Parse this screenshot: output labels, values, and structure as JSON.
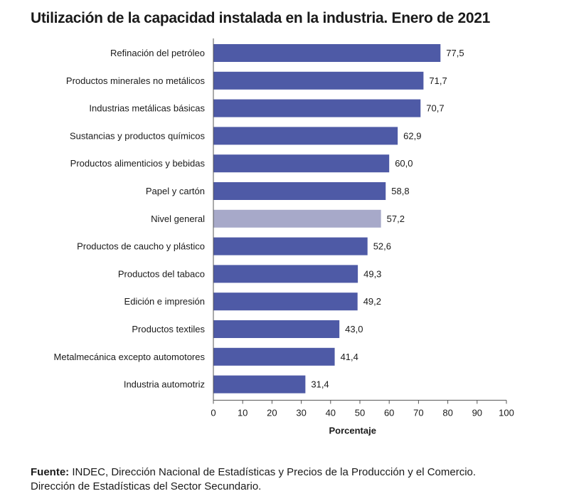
{
  "title": "Utilización de la capacidad instalada en la industria. Enero de 2021",
  "chart_data": {
    "type": "bar",
    "orientation": "horizontal",
    "title": "Utilización de la capacidad instalada en la industria. Enero de 2021",
    "xlabel": "Porcentaje",
    "ylabel": "",
    "xlim": [
      0,
      100
    ],
    "ticks": [
      0,
      10,
      20,
      30,
      40,
      50,
      60,
      70,
      80,
      90,
      100
    ],
    "categories": [
      "Refinación del petróleo",
      "Productos minerales no metálicos",
      "Industrias metálicas básicas",
      "Sustancias y productos químicos",
      "Productos alimenticios y bebidas",
      "Papel y cartón",
      "Nivel general",
      "Productos de caucho y plástico",
      "Productos del tabaco",
      "Edición e impresión",
      "Productos textiles",
      "Metalmecánica excepto automotores",
      "Industria automotriz"
    ],
    "values": [
      77.5,
      71.7,
      70.7,
      62.9,
      60.0,
      58.8,
      57.2,
      52.6,
      49.3,
      49.2,
      43.0,
      41.4,
      31.4
    ],
    "value_labels": [
      "77,5",
      "71,7",
      "70,7",
      "62,9",
      "60,0",
      "58,8",
      "57,2",
      "52,6",
      "49,3",
      "49,2",
      "43,0",
      "41,4",
      "31,4"
    ],
    "highlight_category": "Nivel general",
    "colors": {
      "bar": "#4e5aa6",
      "highlight": "#a7a9c9",
      "axis": "#555555"
    }
  },
  "footer": {
    "label": "Fuente:",
    "line1": " INDEC, Dirección Nacional de Estadísticas y Precios de la Producción y el Comercio.",
    "line2": "Dirección de Estadísticas del Sector Secundario."
  }
}
